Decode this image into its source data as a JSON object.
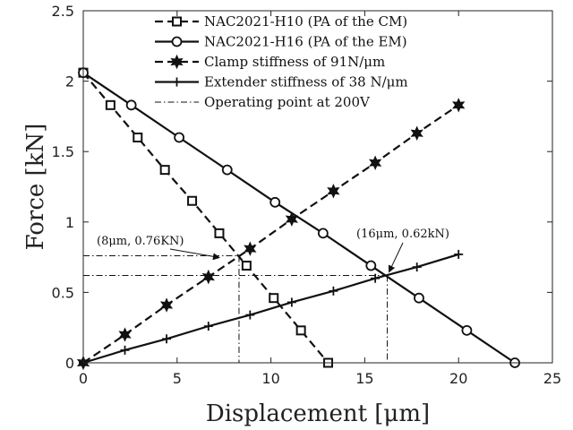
{
  "chart_data": {
    "type": "line",
    "xlabel": "Displacement [μm]",
    "ylabel": "Force [kN]",
    "xlim": [
      0,
      25
    ],
    "ylim": [
      0,
      2.5
    ],
    "xticks": [
      0,
      5,
      10,
      15,
      20,
      25
    ],
    "yticks": [
      0,
      0.5,
      1,
      1.5,
      2,
      2.5
    ],
    "xtick_labels": [
      "0",
      "5",
      "10",
      "15",
      "20",
      "25"
    ],
    "ytick_labels": [
      "0",
      "0.5",
      "1",
      "1.5",
      "2",
      "2.5"
    ],
    "grid": false,
    "legend_position": "top",
    "series": [
      {
        "name": "NAC2021-H10 (PA of the CM)",
        "style": "dashed",
        "marker": "square",
        "color": "#111111",
        "x": [
          0,
          1.45,
          2.9,
          4.35,
          5.8,
          7.25,
          8.7,
          10.15,
          11.6,
          13.05
        ],
        "y": [
          2.06,
          1.83,
          1.6,
          1.37,
          1.15,
          0.92,
          0.69,
          0.46,
          0.23,
          0.0
        ]
      },
      {
        "name": "NAC2021-H16 (PA of the EM)",
        "style": "solid",
        "marker": "circle",
        "color": "#111111",
        "x": [
          0,
          2.56,
          5.11,
          7.67,
          10.22,
          12.78,
          15.33,
          17.89,
          20.44,
          23.0
        ],
        "y": [
          2.06,
          1.83,
          1.6,
          1.37,
          1.14,
          0.92,
          0.69,
          0.46,
          0.23,
          0.0
        ]
      },
      {
        "name": "Clamp stiffness of 91N/μm",
        "style": "dashed",
        "marker": "hexagram",
        "color": "#111111",
        "x": [
          0,
          2.22,
          4.44,
          6.67,
          8.89,
          11.11,
          13.33,
          15.56,
          17.78,
          20.0
        ],
        "y": [
          0.0,
          0.2,
          0.41,
          0.61,
          0.81,
          1.02,
          1.22,
          1.42,
          1.63,
          1.83
        ]
      },
      {
        "name": "Extender stiffness of 38 N/μm",
        "style": "solid",
        "marker": "plus",
        "color": "#111111",
        "x": [
          0,
          2.22,
          4.44,
          6.67,
          8.89,
          11.11,
          13.33,
          15.56,
          17.78,
          20.0
        ],
        "y": [
          0.0,
          0.09,
          0.17,
          0.26,
          0.34,
          0.43,
          0.51,
          0.6,
          0.68,
          0.77
        ]
      }
    ],
    "operating_legend": "Operating point at 200V",
    "operating_points": [
      {
        "x": 8.3,
        "y": 0.76,
        "label": "(8μm, 0.76KN)"
      },
      {
        "x": 16.2,
        "y": 0.62,
        "label": "(16μm, 0.62kN)"
      }
    ]
  }
}
